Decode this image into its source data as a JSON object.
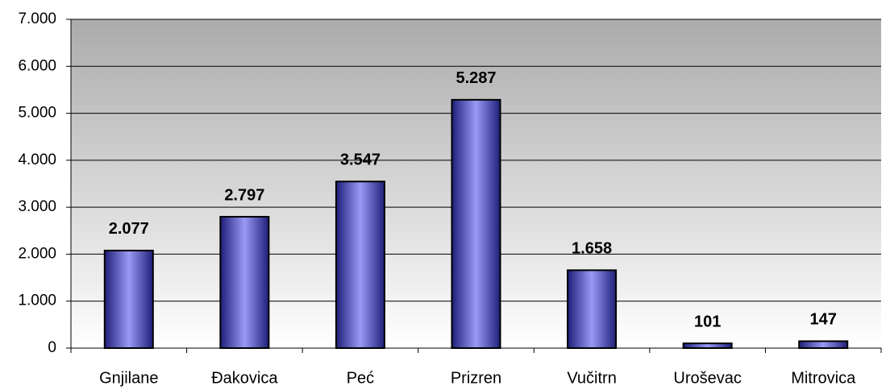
{
  "chart_data": {
    "type": "bar",
    "categories": [
      "Gnjilane",
      "Đakovica",
      "Peć",
      "Prizren",
      "Vučitrn",
      "Uroševac",
      "Mitrovica"
    ],
    "values": [
      2077,
      2797,
      3547,
      5287,
      1658,
      101,
      147
    ],
    "value_labels": [
      "2.077",
      "2.797",
      "3.547",
      "5.287",
      "1.658",
      "101",
      "147"
    ],
    "color": "#1f1f7a",
    "ylim": [
      0,
      7000
    ],
    "yticks": [
      0,
      {
        "value": 1000,
        "label": "1.000"
      },
      {
        "value": 2000,
        "label": "2.000"
      },
      {
        "value": 3000,
        "label": "3.000"
      },
      {
        "value": 4000,
        "label": "4.000"
      },
      {
        "value": 5000,
        "label": "5.000"
      },
      {
        "value": 6000,
        "label": "6.000"
      },
      {
        "value": 7000,
        "label": "7.000"
      }
    ],
    "grid": true
  }
}
